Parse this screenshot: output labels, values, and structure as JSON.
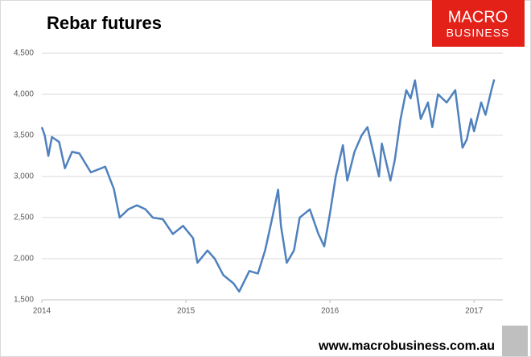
{
  "chart_data": {
    "type": "line",
    "title": "Rebar futures",
    "logo": [
      "MACRO",
      "BUSINESS"
    ],
    "footer": "www.macrobusiness.com.au",
    "xlim": [
      2014,
      2017.2
    ],
    "xticks": [
      2014,
      2015,
      2016,
      2017
    ],
    "ylim": [
      1500,
      4500
    ],
    "yticks": [
      {
        "value": 1500,
        "label": "1,500"
      },
      {
        "value": 2000,
        "label": "2,000"
      },
      {
        "value": 2500,
        "label": "2,500"
      },
      {
        "value": 3000,
        "label": "3,000"
      },
      {
        "value": 3500,
        "label": "3,500"
      },
      {
        "value": 4000,
        "label": "4,000"
      },
      {
        "value": 4500,
        "label": "4,500"
      }
    ],
    "grid": true,
    "series": [
      {
        "name": "Rebar futures",
        "color": "#4f81bd",
        "x": [
          2014.0,
          2014.02,
          2014.045,
          2014.07,
          2014.12,
          2014.16,
          2014.21,
          2014.26,
          2014.34,
          2014.44,
          2014.5,
          2014.54,
          2014.6,
          2014.66,
          2014.72,
          2014.77,
          2014.84,
          2014.91,
          2014.98,
          2015.05,
          2015.08,
          2015.15,
          2015.2,
          2015.26,
          2015.33,
          2015.37,
          2015.44,
          2015.5,
          2015.55,
          2015.6,
          2015.64,
          2015.66,
          2015.7,
          2015.75,
          2015.79,
          2015.86,
          2015.92,
          2015.96,
          2016.0,
          2016.04,
          2016.09,
          2016.12,
          2016.17,
          2016.22,
          2016.26,
          2016.34,
          2016.36,
          2016.42,
          2016.45,
          2016.49,
          2016.53,
          2016.56,
          2016.59,
          2016.63,
          2016.68,
          2016.71,
          2016.75,
          2016.81,
          2016.87,
          2016.92,
          2016.95,
          2016.98,
          2017.0,
          2017.05,
          2017.08,
          2017.12,
          2017.14
        ],
        "values": [
          3600,
          3500,
          3250,
          3480,
          3420,
          3100,
          3300,
          3280,
          3050,
          3120,
          2850,
          2500,
          2600,
          2650,
          2600,
          2500,
          2480,
          2300,
          2400,
          2250,
          1950,
          2100,
          2000,
          1800,
          1700,
          1600,
          1850,
          1820,
          2100,
          2500,
          2840,
          2400,
          1950,
          2100,
          2500,
          2600,
          2300,
          2150,
          2550,
          3000,
          3380,
          2950,
          3300,
          3500,
          3600,
          3000,
          3400,
          2950,
          3200,
          3700,
          4050,
          3950,
          4170,
          3700,
          3900,
          3600,
          4000,
          3900,
          4050,
          3350,
          3450,
          3700,
          3550,
          3900,
          3750,
          4050,
          4180
        ]
      }
    ]
  }
}
